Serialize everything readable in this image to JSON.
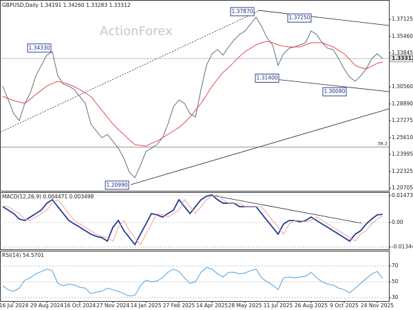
{
  "chart_data": [
    {
      "type": "line",
      "title": "GBPUSD,Daily",
      "header_values": [
        1.34191,
        {
          "value": 1.3426,
          "label": "1.34260"
        },
        1.33283,
        1.33312
      ],
      "watermark": "ActionForex",
      "ylim": [
        1.2044,
        1.3867
      ],
      "yticks": [
        1.37125,
        {
          "value": 1.3546,
          "label": "1.35460"
        },
        1.33845,
        {
          "value": 1.3056,
          "label": "1.30560"
        },
        {
          "value": 1.2889,
          "label": "1.28890"
        },
        1.27275,
        {
          "value": 1.2561,
          "label": "1.25610"
        },
        1.23995,
        1.22325,
        1.20705
      ],
      "grid": false,
      "series": [
        {
          "color": "#5b6f82",
          "values": [
            1.3062,
            1.2928,
            1.2794,
            1.2727,
            1.2895,
            1.2995,
            1.3163,
            1.3264,
            1.3364,
            1.3398,
            1.3163,
            1.3082,
            1.3062,
            1.3029,
            1.2962,
            1.2895,
            1.2694,
            1.2627,
            1.256,
            1.2593,
            1.2526,
            1.2459,
            1.2359,
            1.2225,
            1.2171,
            1.2292,
            1.2426,
            1.2459,
            1.2493,
            1.256,
            1.2694,
            1.2861,
            1.2928,
            1.2895,
            1.2794,
            1.2761,
            1.3029,
            1.3264,
            1.3378,
            1.3418,
            1.3364,
            1.3444,
            1.3511,
            1.3565,
            1.3599,
            1.3666,
            1.3733,
            1.3645,
            1.3531,
            1.3464,
            1.3264,
            1.3378,
            1.3431,
            1.3444,
            1.3464,
            1.3485,
            1.3599,
            1.3565,
            1.3485,
            1.3431,
            1.3418,
            1.333,
            1.323,
            1.315,
            1.311,
            1.3163,
            1.323,
            1.333,
            1.3378,
            1.33312
          ]
        },
        {
          "color": "#e8474a",
          "values": [
            1.2962,
            1.2942,
            1.2922,
            1.2908,
            1.2895,
            1.2935,
            1.2982,
            1.3022,
            1.3062,
            1.3089,
            1.3109,
            1.3096,
            1.3082,
            1.3056,
            1.3029,
            1.2995,
            1.2962,
            1.2895,
            1.2828,
            1.2761,
            1.2694,
            1.264,
            1.2593,
            1.254,
            1.2493,
            1.2486,
            1.2479,
            1.2506,
            1.2526,
            1.256,
            1.2593,
            1.2627,
            1.266,
            1.2707,
            1.2761,
            1.2828,
            1.2895,
            1.2975,
            1.3062,
            1.3129,
            1.3196,
            1.3243,
            1.3297,
            1.3351,
            1.3398,
            1.3431,
            1.3464,
            1.3485,
            1.3498,
            1.3485,
            1.3464,
            1.3451,
            1.3444,
            1.3444,
            1.3444,
            1.3464,
            1.3485,
            1.3485,
            1.3485,
            1.3464,
            1.3444,
            1.3411,
            1.3377,
            1.3324,
            1.3264,
            1.3243,
            1.323,
            1.3257,
            1.3284,
            1.3297
          ]
        }
      ],
      "annotations": [
        {
          "value": 1.3433,
          "label": "1.34330"
        },
        {
          "value": 1.3787,
          "label": "1.37870"
        },
        {
          "value": 1.3725,
          "label": "1.37250"
        },
        {
          "value": 1.314,
          "label": "1.31400"
        },
        {
          "value": 1.3008,
          "label": "1.30080"
        },
        {
          "value": 1.2099,
          "label": "1.20990"
        }
      ],
      "fibonacci": {
        "level": 38.2,
        "price": 1.2471
      }
    },
    {
      "type": "line",
      "title": "MACD(12,26,9)",
      "ylim": [
        -0.01473,
        0.01662
      ],
      "yticks": [
        0.014734,
        {
          "value": 0,
          "label": "0.00"
        },
        -0.013442
      ],
      "grid": true,
      "series": [
        {
          "color": "#1f3a93",
          "values": [
            0.0087,
            0.0068,
            0.0049,
            0.0019,
            0.0011,
            0.003,
            0.0049,
            0.0068,
            0.0106,
            0.0125,
            0.0087,
            0.0049,
            0.0011,
            -0.0008,
            -0.0026,
            -0.0045,
            -0.0064,
            -0.0076,
            -0.0083,
            -0.0102,
            -0.0026,
            0.0011,
            -0.0045,
            -0.0083,
            -0.0121,
            -0.0064,
            -0.0008,
            0.0049,
            0.0042,
            0.003,
            0.0049,
            0.0068,
            0.0125,
            0.0087,
            0.0049,
            0.0087,
            0.0125,
            0.0144,
            0.0151,
            0.0125,
            0.0106,
            0.0106,
            0.0106,
            0.0087,
            0.0087,
            0.0087,
            0.0087,
            0.0049,
            0.0011,
            -0.0026,
            -0.0064,
            -0.0008,
            0.0011,
            0.0011,
            0.0004,
            0.0011,
            0.003,
            0.0011,
            -0.0008,
            -0.0026,
            -0.0045,
            -0.0064,
            -0.0083,
            -0.0102,
            -0.0064,
            -0.0045,
            -0.0008,
            0.0019,
            0.0042,
            0.004471
          ]
        },
        {
          "color": "#f0a0a0",
          "values": [
            0.009,
            0.0087,
            0.0068,
            0.0049,
            0.0019,
            0.0011,
            0.003,
            0.0049,
            0.0068,
            0.0106,
            0.0125,
            0.0087,
            0.0049,
            0.0011,
            -0.0008,
            -0.0026,
            -0.0045,
            -0.0064,
            -0.0076,
            -0.0083,
            -0.0102,
            -0.0026,
            0.0011,
            -0.0045,
            -0.0083,
            -0.0121,
            -0.0064,
            -0.0008,
            0.0049,
            0.0042,
            0.003,
            0.0049,
            0.0068,
            0.0125,
            0.0087,
            0.0049,
            0.0087,
            0.0125,
            0.0144,
            0.0151,
            0.0125,
            0.0106,
            0.0106,
            0.0106,
            0.0087,
            0.0087,
            0.0087,
            0.0087,
            0.0049,
            0.0011,
            -0.0026,
            -0.0064,
            -0.0008,
            0.0011,
            0.0011,
            0.0004,
            0.0011,
            0.003,
            0.0011,
            -0.0008,
            -0.0026,
            -0.0045,
            -0.0064,
            -0.0083,
            -0.0102,
            -0.0064,
            -0.0045,
            -0.0008,
            0.0019,
            0.003498
          ]
        }
      ]
    },
    {
      "type": "line",
      "title": "RSI(14)",
      "ylim": [
        25.7,
        87.4
      ],
      "yticks": [
        70,
        50,
        30
      ],
      "grid": true,
      "categories": [
        null,
        null,
        "16 Jul 2024",
        null,
        null,
        null,
        null,
        null,
        "29 Aug 2024",
        null,
        null,
        null,
        null,
        null,
        "16 Oct 2024",
        null,
        null,
        null,
        null,
        null,
        "27 Nov 2024",
        null,
        null,
        null,
        null,
        null,
        "14 Jan 2025",
        null,
        null,
        null,
        null,
        null,
        "27 Feb 2025",
        null,
        null,
        null,
        null,
        null,
        "14 Apr 2025",
        null,
        null,
        null,
        null,
        null,
        "28 May 2025",
        null,
        null,
        null,
        null,
        null,
        "11 Jul 2025",
        null,
        null,
        null,
        null,
        null,
        "26 Aug 2025",
        null,
        null,
        null,
        null,
        null,
        "9 Oct 2025",
        null,
        null,
        null,
        null,
        null,
        "24 Nov 2025",
        null
      ],
      "series": [
        {
          "color": "#4a9fe0",
          "values": [
            45,
            40,
            38,
            42,
            52,
            55,
            60,
            63,
            66,
            64,
            48,
            45,
            47,
            46,
            43,
            42,
            35,
            37,
            38,
            42,
            40,
            38,
            35,
            32,
            33,
            45,
            52,
            50,
            51,
            55,
            62,
            66,
            63,
            55,
            48,
            50,
            62,
            68,
            66,
            60,
            56,
            62,
            62,
            60,
            61,
            64,
            66,
            55,
            50,
            46,
            40,
            55,
            56,
            55,
            56,
            57,
            62,
            55,
            50,
            47,
            46,
            42,
            40,
            36,
            42,
            48,
            54,
            60,
            63,
            54.5701
          ]
        }
      ]
    }
  ]
}
